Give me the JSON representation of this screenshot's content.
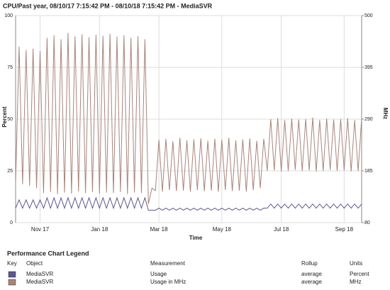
{
  "chart_data": {
    "type": "line",
    "title": "CPU/Past year, 08/10/17 7:15:42 PM - 08/10/18 7:15:42 PM - MediaSVR",
    "y_label": "Percent",
    "y2_label": "MHz",
    "x_label": "Time",
    "categories": [
      null,
      null,
      null,
      null,
      null,
      null,
      null,
      "Nov 17",
      null,
      null,
      null,
      null,
      null,
      null,
      null,
      null,
      null,
      null,
      null,
      null,
      null,
      null,
      null,
      null,
      "Jan 18",
      null,
      null,
      null,
      null,
      null,
      null,
      null,
      null,
      null,
      null,
      null,
      null,
      null,
      null,
      null,
      null,
      "Mar 18",
      null,
      null,
      null,
      null,
      null,
      null,
      null,
      null,
      null,
      null,
      null,
      null,
      null,
      null,
      null,
      null,
      null,
      "May 18",
      null,
      null,
      null,
      null,
      null,
      null,
      null,
      null,
      null,
      null,
      null,
      null,
      null,
      null,
      null,
      null,
      "Jul 18",
      null,
      null,
      null,
      null,
      null,
      null,
      null,
      null,
      null,
      null,
      null,
      null,
      null,
      null,
      null,
      null,
      null,
      "Sep 18",
      null,
      null,
      null,
      null,
      null
    ],
    "ylim": [
      0,
      100
    ],
    "yticks": [
      0,
      25,
      50,
      75,
      100
    ],
    "y2lim": [
      80,
      500
    ],
    "y2ticks": [
      80,
      185,
      290,
      395,
      500
    ],
    "grid": true,
    "series": [
      {
        "name": "Usage",
        "color": "#5c5890",
        "values": [
          7,
          11,
          7,
          11,
          7,
          11,
          7,
          11,
          7,
          12,
          7,
          12,
          7,
          12,
          7,
          12,
          7,
          12,
          7,
          12,
          7,
          12,
          7,
          12,
          7,
          12,
          7,
          12,
          7,
          12,
          7,
          12,
          7,
          12,
          7,
          12,
          7,
          12,
          6,
          6,
          6,
          7,
          6,
          7,
          6,
          7,
          6,
          7,
          6,
          7,
          6,
          7,
          6,
          7,
          6,
          7,
          6,
          7,
          6,
          7,
          6,
          7,
          6,
          7,
          6,
          7,
          6,
          7,
          6,
          7,
          6,
          7,
          7,
          9,
          7,
          9,
          7,
          9,
          7,
          9,
          7,
          9,
          7,
          9,
          7,
          9,
          7,
          9,
          7,
          9,
          7,
          9,
          7,
          9,
          7,
          9,
          7,
          9,
          7,
          9
        ]
      },
      {
        "name": "Usage in MHz",
        "color": "#a8847a",
        "axis": "y2",
        "values": [
          160,
          437,
          158,
          430,
          155,
          433,
          150,
          428,
          140,
          455,
          142,
          460,
          138,
          452,
          141,
          465,
          139,
          458,
          143,
          462,
          140,
          456,
          142,
          461,
          139,
          459,
          141,
          463,
          140,
          457,
          142,
          460,
          138,
          455,
          141,
          458,
          140,
          452,
          118,
          150,
          145,
          248,
          143,
          250,
          146,
          245,
          144,
          252,
          145,
          247,
          143,
          249,
          146,
          251,
          144,
          246,
          145,
          250,
          143,
          248,
          146,
          252,
          144,
          247,
          145,
          249,
          143,
          251,
          146,
          246,
          150,
          250,
          185,
          290,
          186,
          292,
          184,
          288,
          185,
          291,
          187,
          289,
          185,
          290,
          186,
          293,
          184,
          288,
          185,
          291,
          187,
          289,
          185,
          290,
          186,
          292,
          184,
          288,
          185,
          291
        ]
      }
    ],
    "legend": {
      "title": "Performance Chart Legend",
      "headers": [
        "Key",
        "Object",
        "Measurement",
        "Rollup",
        "Units"
      ],
      "rows": [
        {
          "object": "MediaSVR",
          "rollup": "average",
          "units": "Percent"
        },
        {
          "object": "MediaSVR",
          "rollup": "average",
          "units": "MHz"
        }
      ]
    }
  }
}
